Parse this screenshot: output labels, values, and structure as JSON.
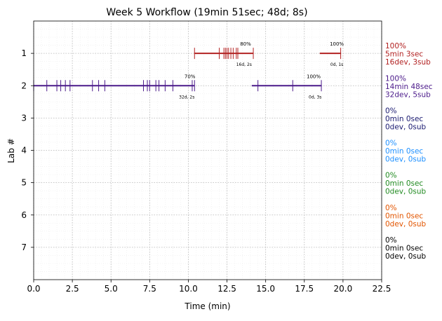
{
  "chart_data": {
    "type": "timeline",
    "title": "Week 5 Workflow (19min 51sec; 48d; 8s)",
    "xlabel": "Time (min)",
    "ylabel": "Lab #",
    "xlim": [
      0,
      22.5
    ],
    "ylim": [
      8,
      0
    ],
    "xticks": [
      0,
      2.5,
      5,
      7.5,
      10,
      12.5,
      15,
      17.5,
      20,
      22.5
    ],
    "xtick_labels": [
      "0.0",
      "2.5",
      "5.0",
      "7.5",
      "10.0",
      "12.5",
      "15.0",
      "17.5",
      "20.0",
      "22.5"
    ],
    "yticks": [
      1,
      2,
      3,
      4,
      5,
      6,
      7
    ],
    "ytick_labels": [
      "1",
      "2",
      "3",
      "4",
      "5",
      "6",
      "7"
    ],
    "grid": true,
    "segments": [
      {
        "lab": 1,
        "start": 10.4,
        "end": 14.2,
        "color": "#b22222",
        "ticks": [
          10.4,
          12.0,
          12.3,
          12.4,
          12.5,
          12.6,
          12.75,
          12.9,
          13.1,
          13.2,
          14.2
        ],
        "pct_label": "80%",
        "pct_x": 13.7,
        "count_label": "16d, 2s",
        "count_x": 13.6
      },
      {
        "lab": 1,
        "start": 18.5,
        "end": 19.85,
        "color": "#b22222",
        "ticks": [
          19.85
        ],
        "pct_label": "100%",
        "pct_x": 19.6,
        "count_label": "0d, 1s",
        "count_x": 19.6
      },
      {
        "lab": 2,
        "start": 0.0,
        "end": 10.4,
        "color": "#4b1a8a",
        "ticks": [
          0.0,
          0.85,
          1.5,
          1.75,
          2.05,
          2.35,
          3.8,
          4.2,
          4.6,
          7.1,
          7.35,
          7.5,
          7.9,
          8.1,
          8.5,
          9.0,
          10.25,
          10.4
        ],
        "pct_label": "70%",
        "pct_x": 10.1,
        "count_label": "32d, 2s",
        "count_x": 9.9
      },
      {
        "lab": 2,
        "start": 14.1,
        "end": 18.6,
        "color": "#4b1a8a",
        "ticks": [
          14.5,
          16.75,
          18.6
        ],
        "pct_label": "100%",
        "pct_x": 18.1,
        "count_label": "0d, 3s",
        "count_x": 18.2
      }
    ],
    "lab_summaries": [
      {
        "lab": 1,
        "color": "#b22222",
        "lines": [
          "100%",
          "5min 3sec",
          "16dev, 3sub"
        ]
      },
      {
        "lab": 2,
        "color": "#4b1a8a",
        "lines": [
          "100%",
          "14min 48sec",
          "32dev, 5sub"
        ]
      },
      {
        "lab": 3,
        "color": "#191970",
        "lines": [
          "0%",
          "0min 0sec",
          "0dev, 0sub"
        ]
      },
      {
        "lab": 4,
        "color": "#1e90ff",
        "lines": [
          "0%",
          "0min 0sec",
          "0dev, 0sub"
        ]
      },
      {
        "lab": 5,
        "color": "#228b22",
        "lines": [
          "0%",
          "0min 0sec",
          "0dev, 0sub"
        ]
      },
      {
        "lab": 6,
        "color": "#e25500",
        "lines": [
          "0%",
          "0min 0sec",
          "0dev, 0sub"
        ]
      },
      {
        "lab": 7,
        "color": "#000000",
        "lines": [
          "0%",
          "0min 0sec",
          "0dev, 0sub"
        ]
      }
    ]
  }
}
